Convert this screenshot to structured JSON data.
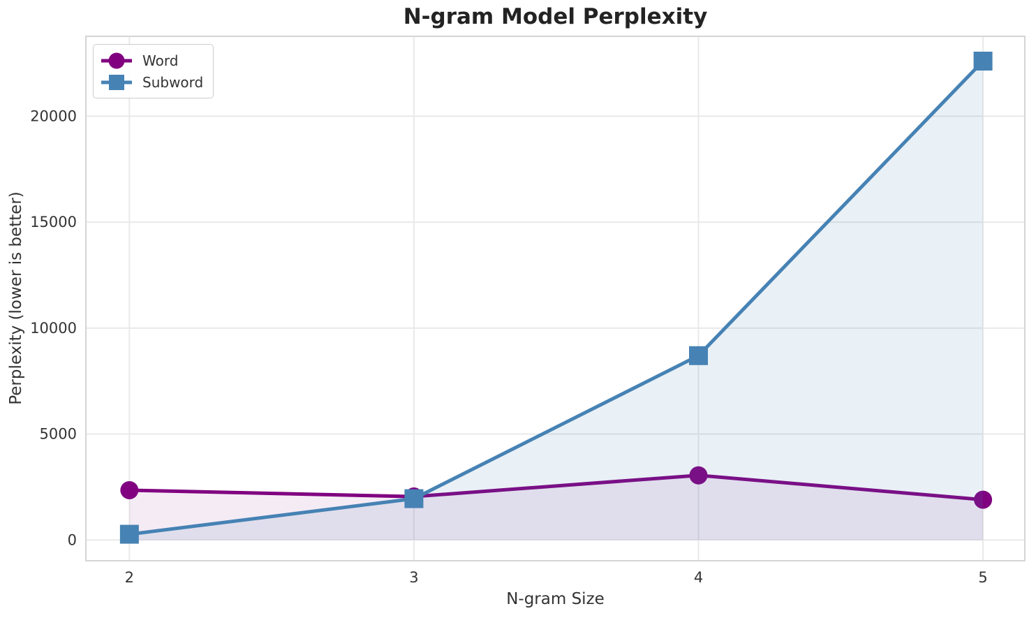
{
  "title": "N-gram Model Perplexity",
  "chart_data": {
    "type": "line",
    "title": "N-gram Model Perplexity",
    "xlabel": "N-gram Size",
    "ylabel": "Perplexity (lower is better)",
    "x": [
      2,
      3,
      4,
      5
    ],
    "xtick_labels": [
      "2",
      "3",
      "4",
      "5"
    ],
    "ytick_values": [
      0,
      5000,
      10000,
      15000,
      20000
    ],
    "ytick_labels": [
      "0",
      "5000",
      "10000",
      "15000",
      "20000"
    ],
    "xlim": [
      1.847,
      5.147
    ],
    "ylim": [
      -980,
      23770
    ],
    "grid": true,
    "legend_position": "upper left",
    "area_fill_to_zero": true,
    "series": [
      {
        "name": "Word",
        "marker": "circle",
        "color": "#800080",
        "fill_opacity": 0.08,
        "values": [
          2350,
          2050,
          3050,
          1900
        ]
      },
      {
        "name": "Subword",
        "marker": "square",
        "color": "#4682B4",
        "fill_opacity": 0.12,
        "values": [
          270,
          1950,
          8700,
          22600
        ]
      }
    ]
  }
}
